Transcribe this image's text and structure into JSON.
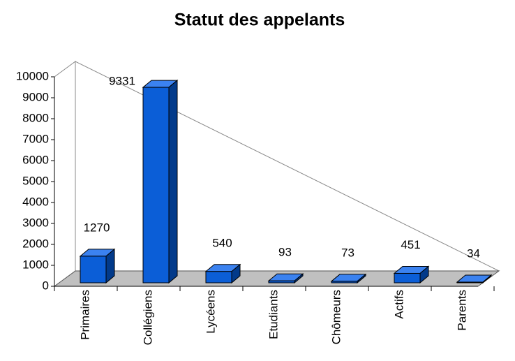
{
  "chart_data": {
    "type": "bar3d",
    "title": "Statut des appelants",
    "categories": [
      "Primaires",
      "Collégiens",
      "Lycéens",
      "Etudiants",
      "Chômeurs",
      "Actifs",
      "Parents"
    ],
    "values": [
      1270,
      9331,
      540,
      93,
      73,
      451,
      34
    ],
    "color": "#0b5ed7",
    "ylim": [
      0,
      10000
    ],
    "yticks": [
      0,
      1000,
      2000,
      3000,
      4000,
      5000,
      6000,
      7000,
      8000,
      9000,
      10000
    ]
  }
}
